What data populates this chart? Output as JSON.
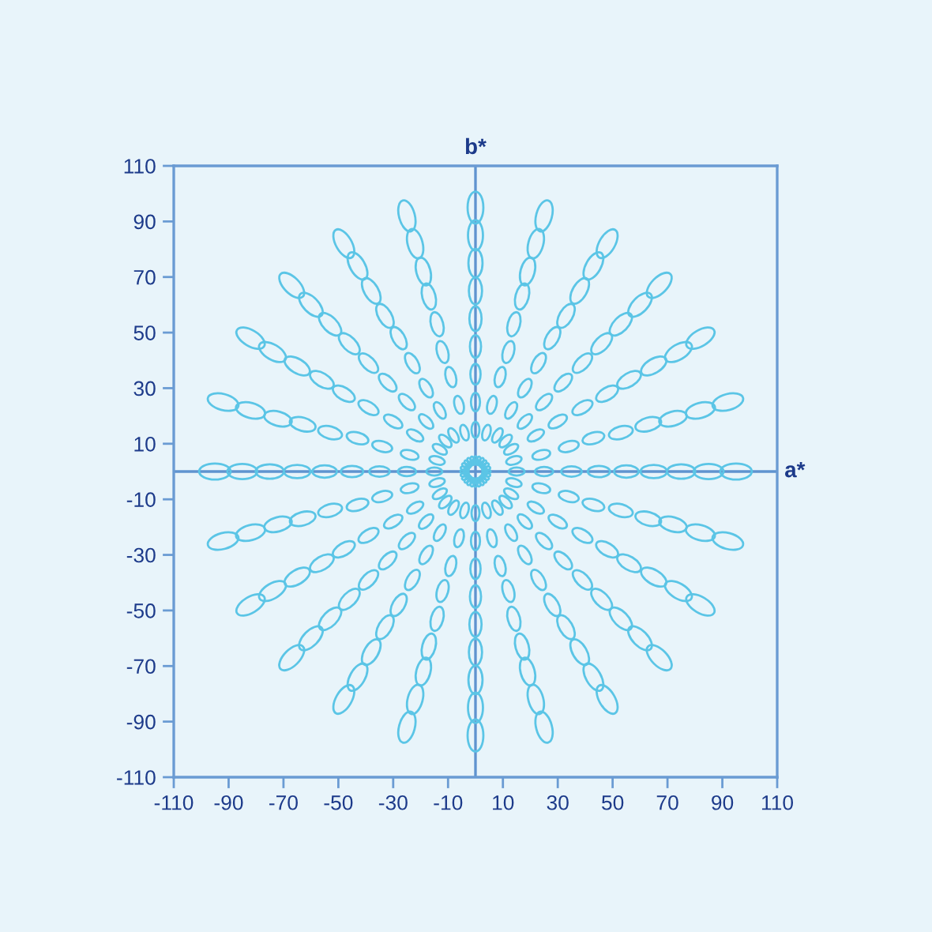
{
  "chart_data": {
    "type": "bubble",
    "xlim": [
      -110,
      110
    ],
    "ylim": [
      -110,
      110
    ],
    "xticks": [
      -110,
      -90,
      -70,
      -50,
      -30,
      -10,
      10,
      30,
      50,
      70,
      90,
      110
    ],
    "yticks": [
      -110,
      -90,
      -70,
      -50,
      -30,
      -10,
      10,
      30,
      50,
      70,
      90,
      110
    ],
    "ref_lines": [
      {
        "axis": "y",
        "value": 0,
        "label": "a*",
        "color": "#5f93cf"
      },
      {
        "axis": "x",
        "value": 0,
        "label": "b*",
        "color": "#5f93cf"
      }
    ],
    "series": [
      {
        "color": "#5bc5e6",
        "x": [
          4,
          15,
          25,
          35,
          45,
          55,
          65,
          75,
          85,
          95
        ],
        "values": [
          0,
          0,
          0,
          0,
          0,
          0,
          0,
          0,
          0,
          0
        ],
        "sizes": [
          0.07,
          0.25,
          0.33,
          0.42,
          0.5,
          0.6,
          0.7,
          0.8,
          0.9,
          1
        ]
      },
      {
        "color": "#5bc5e6",
        "x": [
          3.9,
          14,
          24,
          34,
          43,
          53,
          63,
          72,
          82,
          92
        ],
        "values": [
          1,
          4,
          6,
          9,
          12,
          14,
          17,
          19,
          22,
          25
        ],
        "sizes": [
          0.07,
          0.25,
          0.33,
          0.42,
          0.5,
          0.6,
          0.7,
          0.8,
          0.9,
          1
        ]
      },
      {
        "color": "#5bc5e6",
        "x": [
          3.5,
          13,
          22,
          30,
          39,
          48,
          56,
          65,
          74,
          82
        ],
        "values": [
          2,
          8,
          13,
          18,
          23,
          28,
          33,
          38,
          43,
          48
        ],
        "sizes": [
          0.07,
          0.25,
          0.33,
          0.42,
          0.5,
          0.6,
          0.7,
          0.8,
          0.9,
          1
        ]
      },
      {
        "color": "#5bc5e6",
        "x": [
          2.8,
          11,
          18,
          25,
          32,
          39,
          46,
          53,
          60,
          67
        ],
        "values": [
          2.8,
          11,
          18,
          25,
          32,
          39,
          46,
          53,
          60,
          67
        ],
        "sizes": [
          0.07,
          0.25,
          0.33,
          0.42,
          0.5,
          0.6,
          0.7,
          0.8,
          0.9,
          1
        ]
      },
      {
        "color": "#5bc5e6",
        "x": [
          2,
          8,
          13,
          18,
          23,
          28,
          33,
          38,
          43,
          48
        ],
        "values": [
          3.5,
          13,
          22,
          30,
          39,
          48,
          56,
          65,
          74,
          82
        ],
        "sizes": [
          0.07,
          0.25,
          0.33,
          0.42,
          0.5,
          0.6,
          0.7,
          0.8,
          0.9,
          1
        ]
      },
      {
        "color": "#5bc5e6",
        "x": [
          1,
          4,
          6,
          9,
          12,
          14,
          17,
          19,
          22,
          25
        ],
        "values": [
          3.9,
          14,
          24,
          34,
          43,
          53,
          63,
          72,
          82,
          92
        ],
        "sizes": [
          0.07,
          0.25,
          0.33,
          0.42,
          0.5,
          0.6,
          0.7,
          0.8,
          0.9,
          1
        ]
      },
      {
        "color": "#5bc5e6",
        "x": [
          0,
          0,
          0,
          0,
          0,
          0,
          0,
          0,
          0,
          0
        ],
        "values": [
          4,
          15,
          25,
          35,
          45,
          55,
          65,
          75,
          85,
          95
        ],
        "sizes": [
          0.07,
          0.25,
          0.33,
          0.42,
          0.5,
          0.6,
          0.7,
          0.8,
          0.9,
          1
        ]
      },
      {
        "color": "#5bc5e6",
        "x": [
          -1,
          -4,
          -6,
          -9,
          -12,
          -14,
          -17,
          -19,
          -22,
          -25
        ],
        "values": [
          3.9,
          14,
          24,
          34,
          43,
          53,
          63,
          72,
          82,
          92
        ],
        "sizes": [
          0.07,
          0.25,
          0.33,
          0.42,
          0.5,
          0.6,
          0.7,
          0.8,
          0.9,
          1
        ]
      },
      {
        "color": "#5bc5e6",
        "x": [
          -2,
          -8,
          -13,
          -18,
          -23,
          -28,
          -33,
          -38,
          -43,
          -48
        ],
        "values": [
          3.5,
          13,
          22,
          30,
          39,
          48,
          56,
          65,
          74,
          82
        ],
        "sizes": [
          0.07,
          0.25,
          0.33,
          0.42,
          0.5,
          0.6,
          0.7,
          0.8,
          0.9,
          1
        ]
      },
      {
        "color": "#5bc5e6",
        "x": [
          -2.8,
          -11,
          -18,
          -25,
          -32,
          -39,
          -46,
          -53,
          -60,
          -67
        ],
        "values": [
          2.8,
          11,
          18,
          25,
          32,
          39,
          46,
          53,
          60,
          67
        ],
        "sizes": [
          0.07,
          0.25,
          0.33,
          0.42,
          0.5,
          0.6,
          0.7,
          0.8,
          0.9,
          1
        ]
      },
      {
        "color": "#5bc5e6",
        "x": [
          -3.5,
          -13,
          -22,
          -30,
          -39,
          -48,
          -56,
          -65,
          -74,
          -82
        ],
        "values": [
          2,
          8,
          13,
          18,
          23,
          28,
          33,
          38,
          43,
          48
        ],
        "sizes": [
          0.07,
          0.25,
          0.33,
          0.42,
          0.5,
          0.6,
          0.7,
          0.8,
          0.9,
          1
        ]
      },
      {
        "color": "#5bc5e6",
        "x": [
          -3.9,
          -14,
          -24,
          -34,
          -43,
          -53,
          -63,
          -72,
          -82,
          -92
        ],
        "values": [
          1,
          4,
          6,
          9,
          12,
          14,
          17,
          19,
          22,
          25
        ],
        "sizes": [
          0.07,
          0.25,
          0.33,
          0.42,
          0.5,
          0.6,
          0.7,
          0.8,
          0.9,
          1
        ]
      },
      {
        "color": "#5bc5e6",
        "x": [
          -4,
          -15,
          -25,
          -35,
          -45,
          -55,
          -65,
          -75,
          -85,
          -95
        ],
        "values": [
          0,
          0,
          0,
          0,
          0,
          0,
          0,
          0,
          0,
          0
        ],
        "sizes": [
          0.07,
          0.25,
          0.33,
          0.42,
          0.5,
          0.6,
          0.7,
          0.8,
          0.9,
          1
        ]
      },
      {
        "color": "#5bc5e6",
        "x": [
          -3.9,
          -14,
          -24,
          -34,
          -43,
          -53,
          -63,
          -72,
          -82,
          -92
        ],
        "values": [
          -1,
          -4,
          -6,
          -9,
          -12,
          -14,
          -17,
          -19,
          -22,
          -25
        ],
        "sizes": [
          0.07,
          0.25,
          0.33,
          0.42,
          0.5,
          0.6,
          0.7,
          0.8,
          0.9,
          1
        ]
      },
      {
        "color": "#5bc5e6",
        "x": [
          -3.5,
          -13,
          -22,
          -30,
          -39,
          -48,
          -56,
          -65,
          -74,
          -82
        ],
        "values": [
          -2,
          -8,
          -13,
          -18,
          -23,
          -28,
          -33,
          -38,
          -43,
          -48
        ],
        "sizes": [
          0.07,
          0.25,
          0.33,
          0.42,
          0.5,
          0.6,
          0.7,
          0.8,
          0.9,
          1
        ]
      },
      {
        "color": "#5bc5e6",
        "x": [
          -2.8,
          -11,
          -18,
          -25,
          -32,
          -39,
          -46,
          -53,
          -60,
          -67
        ],
        "values": [
          -2.8,
          -11,
          -18,
          -25,
          -32,
          -39,
          -46,
          -53,
          -60,
          -67
        ],
        "sizes": [
          0.07,
          0.25,
          0.33,
          0.42,
          0.5,
          0.6,
          0.7,
          0.8,
          0.9,
          1
        ]
      },
      {
        "color": "#5bc5e6",
        "x": [
          -2,
          -8,
          -13,
          -18,
          -23,
          -28,
          -33,
          -38,
          -43,
          -48
        ],
        "values": [
          -3.5,
          -13,
          -22,
          -30,
          -39,
          -48,
          -56,
          -65,
          -74,
          -82
        ],
        "sizes": [
          0.07,
          0.25,
          0.33,
          0.42,
          0.5,
          0.6,
          0.7,
          0.8,
          0.9,
          1
        ]
      },
      {
        "color": "#5bc5e6",
        "x": [
          -1,
          -4,
          -6,
          -9,
          -12,
          -14,
          -17,
          -19,
          -22,
          -25
        ],
        "values": [
          -3.9,
          -14,
          -24,
          -34,
          -43,
          -53,
          -63,
          -72,
          -82,
          -92
        ],
        "sizes": [
          0.07,
          0.25,
          0.33,
          0.42,
          0.5,
          0.6,
          0.7,
          0.8,
          0.9,
          1
        ]
      },
      {
        "color": "#5bc5e6",
        "x": [
          0,
          0,
          0,
          0,
          0,
          0,
          0,
          0,
          0,
          0
        ],
        "values": [
          -4,
          -15,
          -25,
          -35,
          -45,
          -55,
          -65,
          -75,
          -85,
          -95
        ],
        "sizes": [
          0.07,
          0.25,
          0.33,
          0.42,
          0.5,
          0.6,
          0.7,
          0.8,
          0.9,
          1
        ]
      },
      {
        "color": "#5bc5e6",
        "x": [
          1,
          4,
          6,
          9,
          12,
          14,
          17,
          19,
          22,
          25
        ],
        "values": [
          -3.9,
          -14,
          -24,
          -34,
          -43,
          -53,
          -63,
          -72,
          -82,
          -92
        ],
        "sizes": [
          0.07,
          0.25,
          0.33,
          0.42,
          0.5,
          0.6,
          0.7,
          0.8,
          0.9,
          1
        ]
      },
      {
        "color": "#5bc5e6",
        "x": [
          2,
          8,
          13,
          18,
          23,
          28,
          33,
          38,
          43,
          48
        ],
        "values": [
          -3.5,
          -13,
          -22,
          -30,
          -39,
          -48,
          -56,
          -65,
          -74,
          -82
        ],
        "sizes": [
          0.07,
          0.25,
          0.33,
          0.42,
          0.5,
          0.6,
          0.7,
          0.8,
          0.9,
          1
        ]
      },
      {
        "color": "#5bc5e6",
        "x": [
          2.8,
          11,
          18,
          25,
          32,
          39,
          46,
          53,
          60,
          67
        ],
        "values": [
          -2.8,
          -11,
          -18,
          -25,
          -32,
          -39,
          -46,
          -53,
          -60,
          -67
        ],
        "sizes": [
          0.07,
          0.25,
          0.33,
          0.42,
          0.5,
          0.6,
          0.7,
          0.8,
          0.9,
          1
        ]
      },
      {
        "color": "#5bc5e6",
        "x": [
          3.5,
          13,
          22,
          30,
          39,
          48,
          56,
          65,
          74,
          82
        ],
        "values": [
          -2,
          -8,
          -13,
          -18,
          -23,
          -28,
          -33,
          -38,
          -43,
          -48
        ],
        "sizes": [
          0.07,
          0.25,
          0.33,
          0.42,
          0.5,
          0.6,
          0.7,
          0.8,
          0.9,
          1
        ]
      },
      {
        "color": "#5bc5e6",
        "x": [
          3.9,
          14,
          24,
          34,
          43,
          53,
          63,
          72,
          82,
          92
        ],
        "values": [
          -1,
          -4,
          -6,
          -9,
          -12,
          -14,
          -17,
          -19,
          -22,
          -25
        ],
        "sizes": [
          0.07,
          0.25,
          0.33,
          0.42,
          0.5,
          0.6,
          0.7,
          0.8,
          0.9,
          1
        ]
      }
    ]
  }
}
